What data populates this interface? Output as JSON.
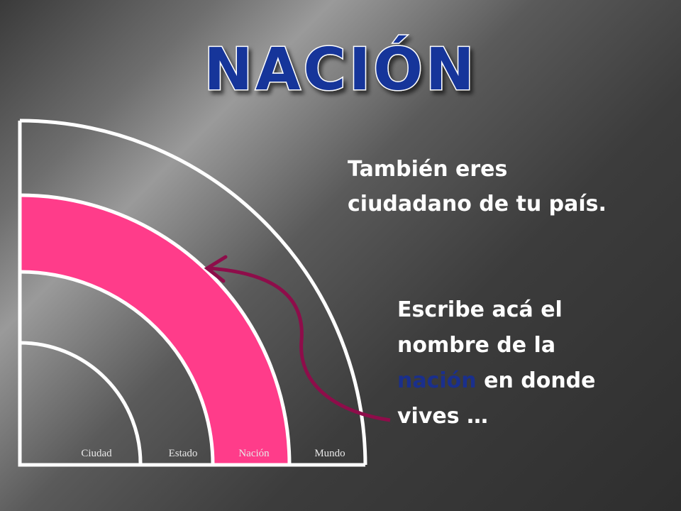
{
  "title": "NACIÓN",
  "statement": {
    "line1": "También eres",
    "line2": "ciudadano de tu país."
  },
  "prompt": {
    "line1": "Escribe acá el",
    "line2": "nombre de la",
    "highlight": "nación",
    "line3_rest": "en donde",
    "line4": "vives …"
  },
  "rings": {
    "labels": [
      "Ciudad",
      "Estado",
      "Nación",
      "Mundo"
    ]
  }
}
